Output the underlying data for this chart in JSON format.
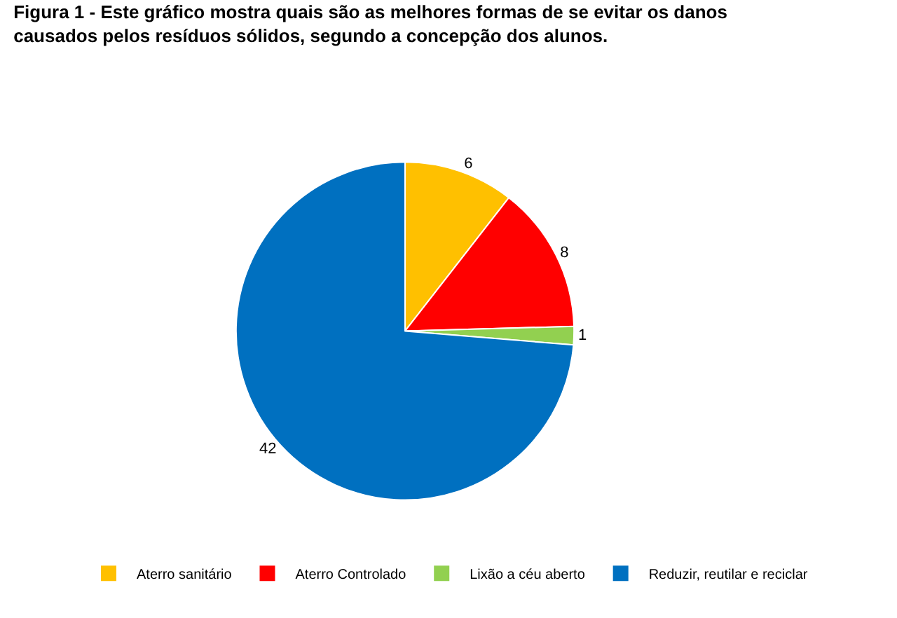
{
  "chart_data": {
    "type": "pie",
    "title": "Figura 1 - Este gráfico mostra quais são as melhores formas de se evitar os danos\ncausados pelos resíduos sólidos, segundo a concepção dos alunos.",
    "categories": [
      "Aterro sanitário",
      "Aterro Controlado",
      "Lixão a céu aberto",
      "Reduzir, reutilar e reciclar"
    ],
    "values": [
      6,
      8,
      1,
      42
    ],
    "colors": [
      "#ffc000",
      "#ff0000",
      "#92d050",
      "#0070c0"
    ],
    "data_labels": true,
    "legend": "bottom"
  }
}
